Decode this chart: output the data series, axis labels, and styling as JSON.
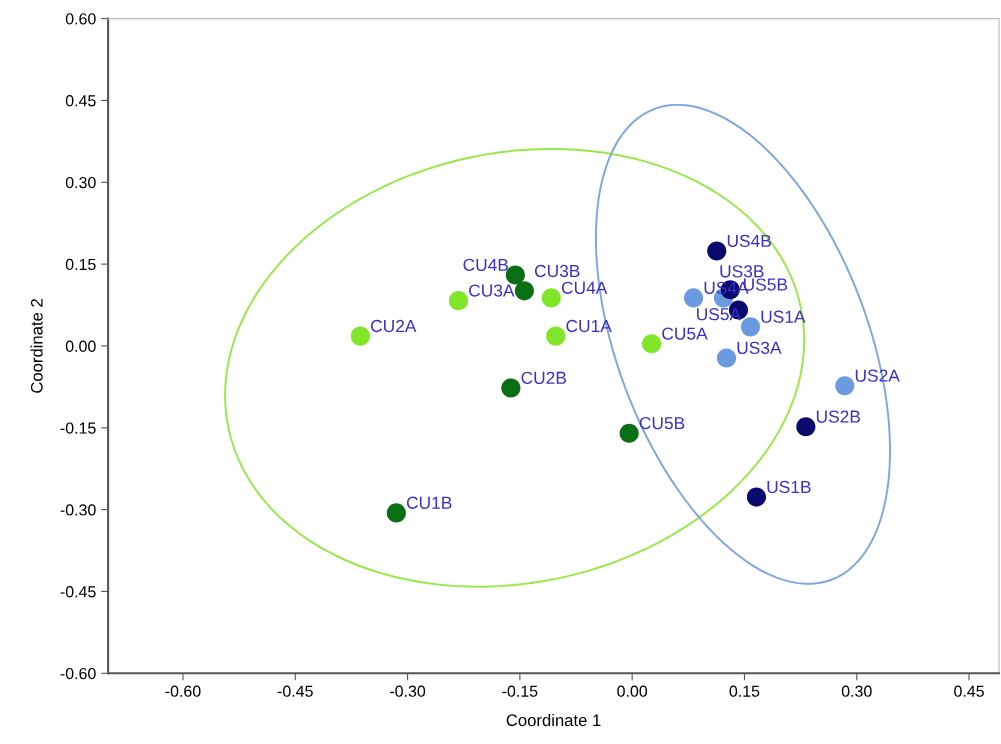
{
  "chart_data": {
    "type": "scatter",
    "xlabel": "Coordinate 1",
    "ylabel": "Coordinate 2",
    "xlim": [
      -0.7,
      0.49
    ],
    "ylim": [
      -0.6,
      0.6
    ],
    "xticks": [
      {
        "value": -0.6,
        "label": "-0.60"
      },
      {
        "value": -0.45,
        "label": "-0.45"
      },
      {
        "value": -0.3,
        "label": "-0.30"
      },
      {
        "value": -0.15,
        "label": "-0.15"
      },
      {
        "value": 0,
        "label": "0.00"
      },
      {
        "value": 0.15,
        "label": "0.15"
      },
      {
        "value": 0.3,
        "label": "0.30"
      },
      {
        "value": 0.45,
        "label": "0.45"
      }
    ],
    "yticks": [
      {
        "value": 0.6,
        "label": "0.60"
      },
      {
        "value": 0.45,
        "label": "0.45"
      },
      {
        "value": 0.3,
        "label": "0.30"
      },
      {
        "value": 0.15,
        "label": "0.15"
      },
      {
        "value": 0,
        "label": "0.00"
      },
      {
        "value": -0.15,
        "label": "-0.15"
      },
      {
        "value": -0.3,
        "label": "-0.30"
      },
      {
        "value": -0.45,
        "label": "-0.45"
      },
      {
        "value": -0.6,
        "label": "-0.60"
      }
    ],
    "grid": false,
    "legend": false,
    "marker": "circle",
    "series": [
      {
        "color": "#7fe62a",
        "x": [
          -0.102,
          -0.363,
          -0.232,
          -0.108,
          0.026
        ],
        "values": [
          0.018,
          0.018,
          0.083,
          0.088,
          0.004
        ],
        "value_labels": [
          "CU1A",
          "CU2A",
          "CU3A",
          "CU4A",
          "CU5A"
        ]
      },
      {
        "color": "#0a6e14",
        "x": [
          -0.315,
          -0.162,
          -0.144,
          -0.156,
          -0.004
        ],
        "values": [
          -0.306,
          -0.077,
          0.101,
          0.13,
          -0.16
        ],
        "value_labels": [
          "CU1B",
          "CU2B",
          "CU3B",
          "CU4B",
          "CU5B"
        ]
      },
      {
        "color": "#6a9be0",
        "x": [
          0.158,
          0.284,
          0.126,
          0.082,
          0.122
        ],
        "values": [
          0.035,
          -0.073,
          -0.022,
          0.088,
          0.088
        ],
        "value_labels": [
          "US1A",
          "US2A",
          "US3A",
          "US4A",
          "US5A"
        ]
      },
      {
        "color": "#0a0a6e",
        "x": [
          0.166,
          0.232,
          0.131,
          0.113,
          0.142
        ],
        "values": [
          -0.277,
          -0.148,
          0.103,
          0.174,
          0.066
        ],
        "value_labels": [
          "US1B",
          "US2B",
          "US3B",
          "US4B",
          "US5B"
        ]
      }
    ]
  }
}
